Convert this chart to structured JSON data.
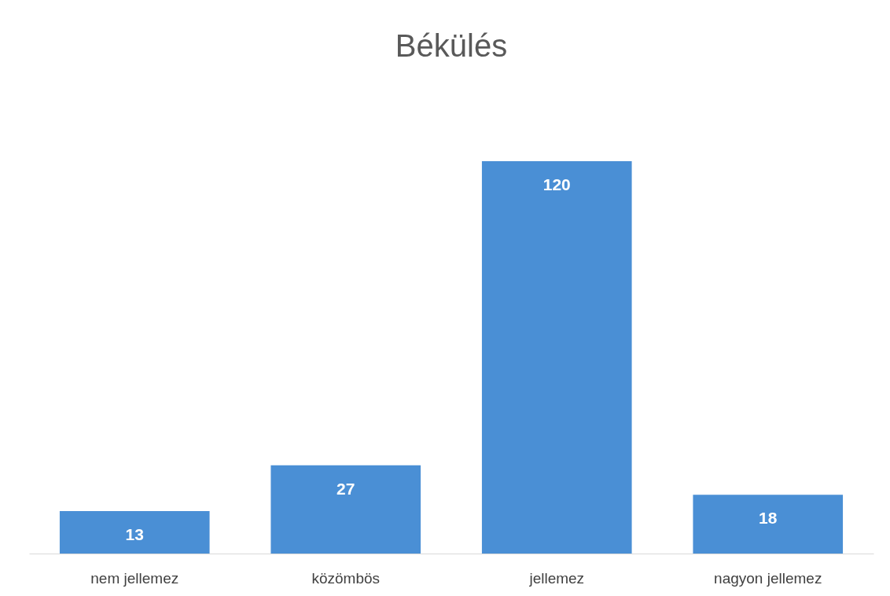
{
  "chart_data": {
    "type": "bar",
    "title": "Békülés",
    "categories": [
      "nem jellemez",
      "közömbös",
      "jellemez",
      "nagyon jellemez"
    ],
    "values": [
      13,
      27,
      120,
      18
    ],
    "color": "#4a8fd5",
    "data_labels": true,
    "tick_labels": "x",
    "grid": false
  }
}
